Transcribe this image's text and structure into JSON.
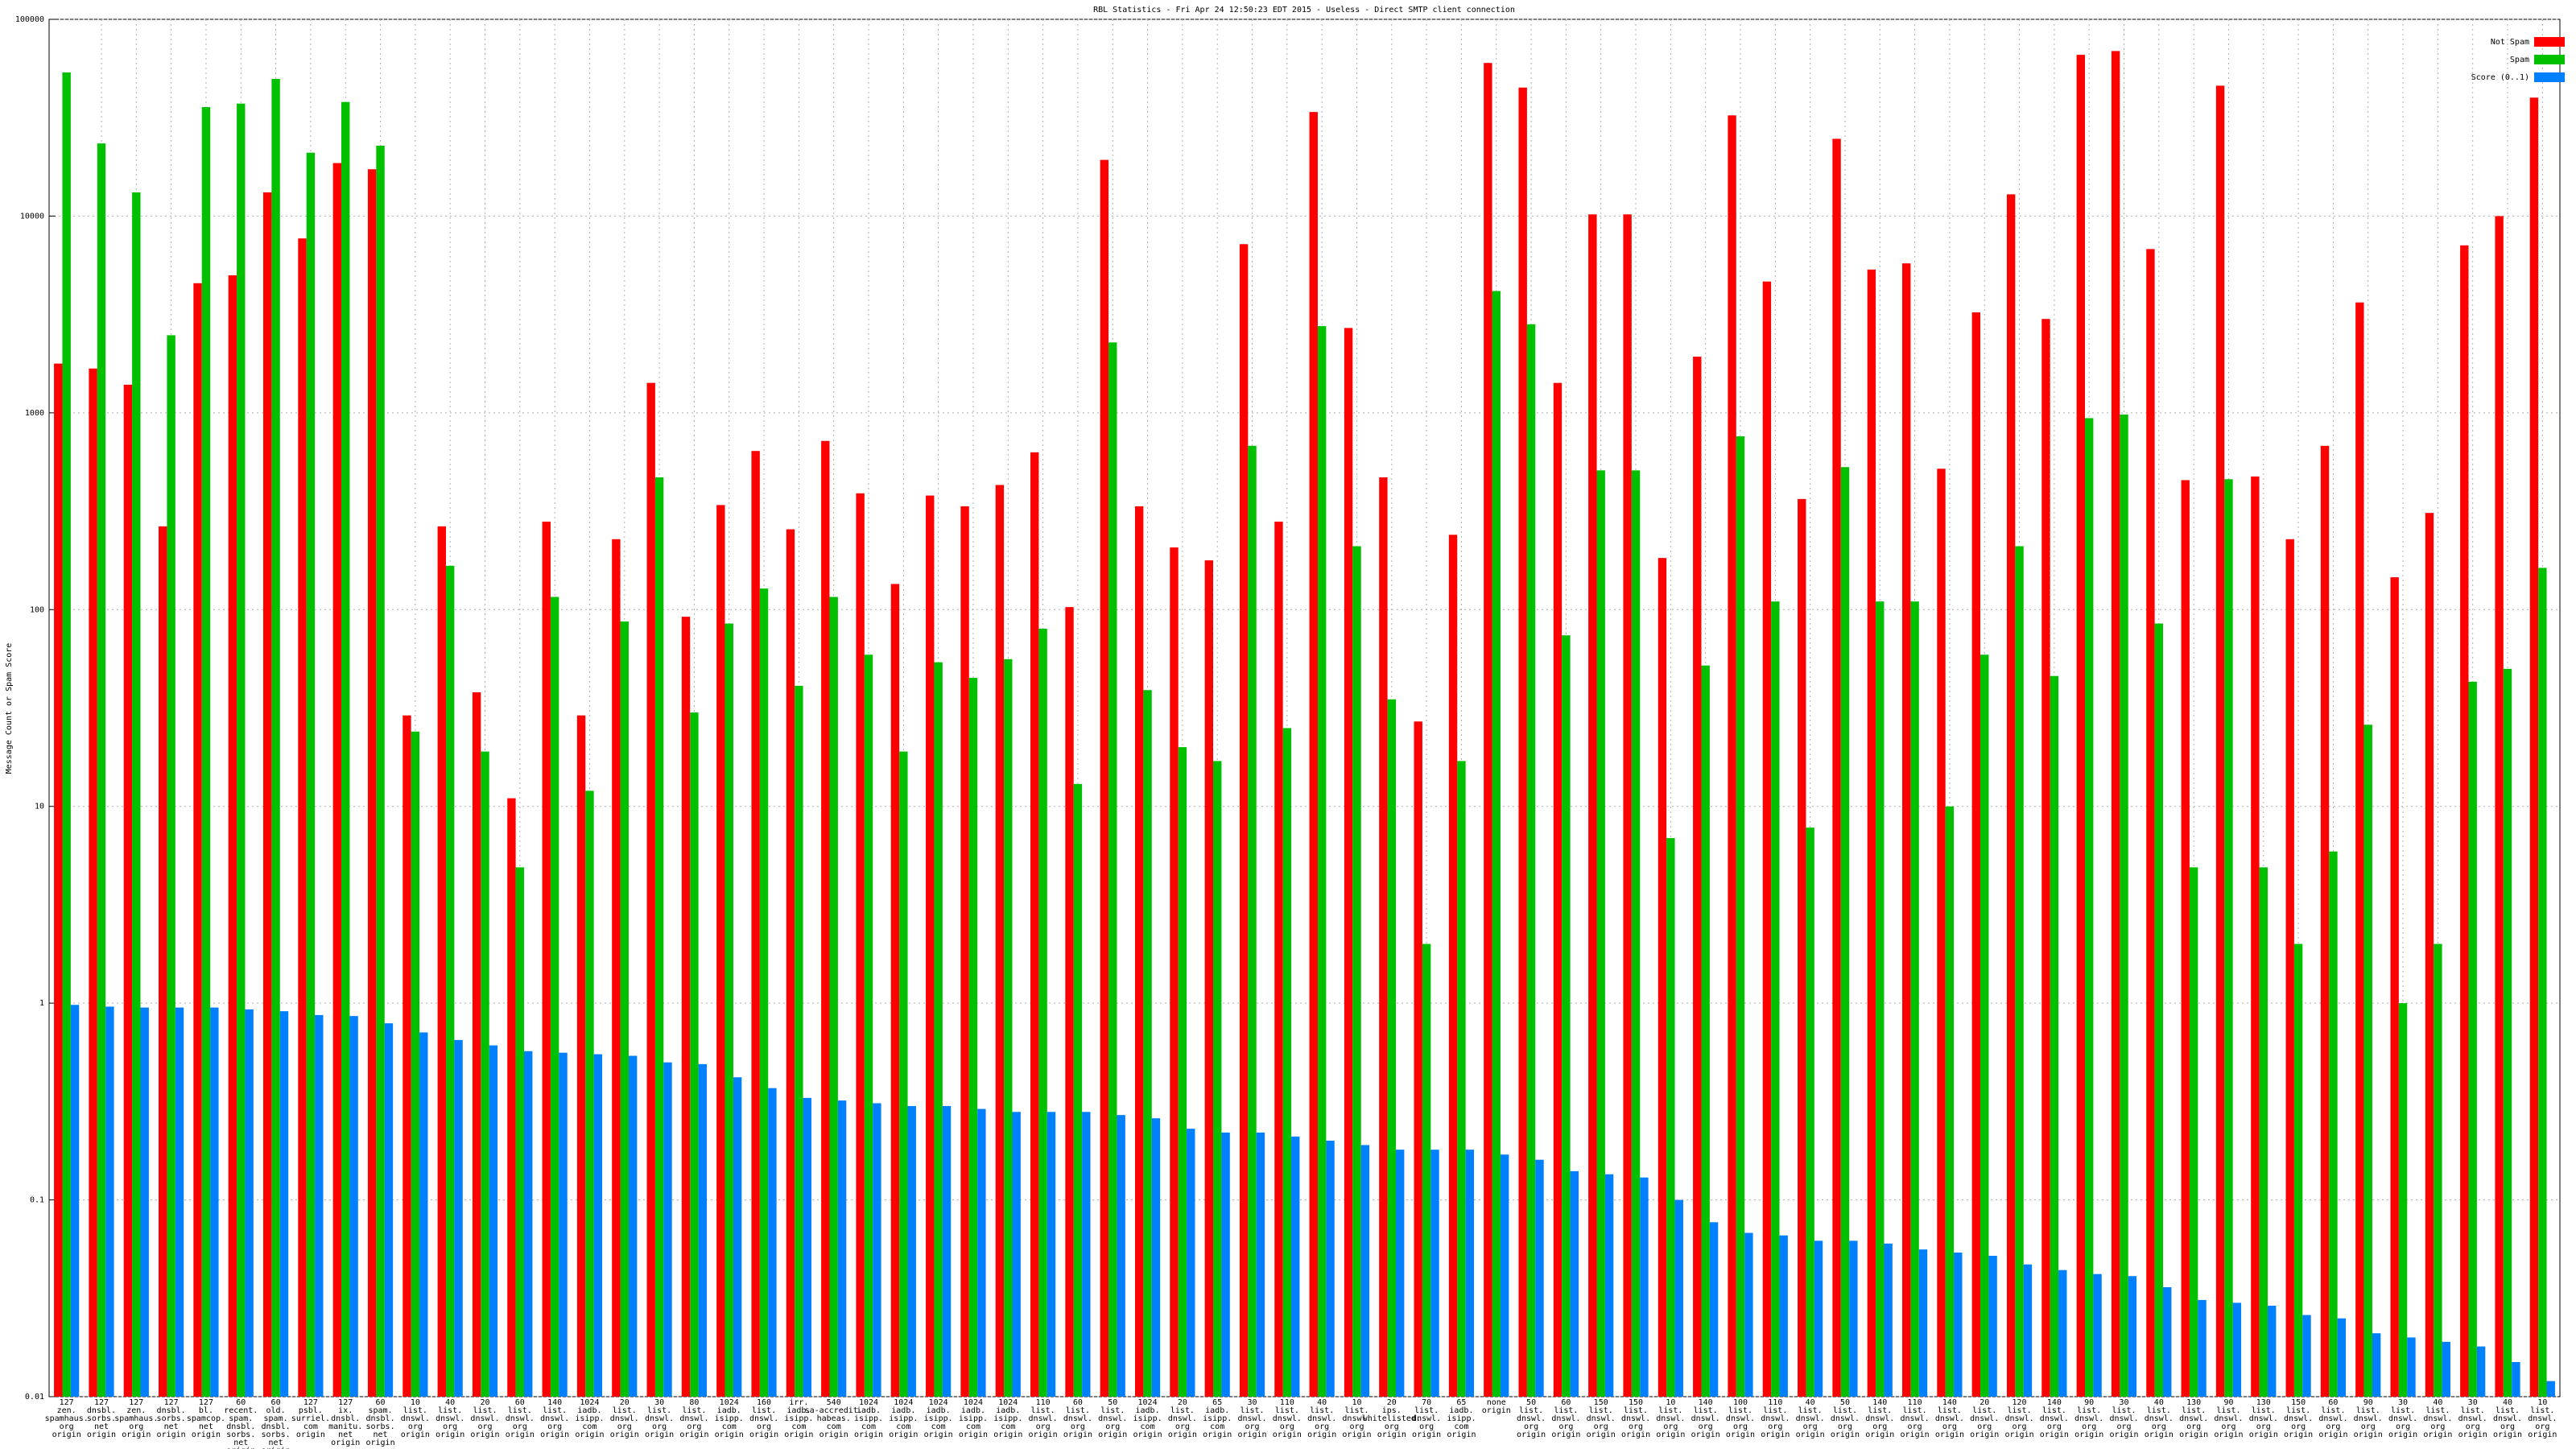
{
  "chart_data": {
    "type": "bar",
    "title": "RBL Statistics - Fri Apr 24 12:50:23 EDT 2015 - Useless - Direct SMTP client connection",
    "y_label": "Message Count or Spam Score",
    "log_y": true,
    "grid": true,
    "legend": "top-right",
    "ylim": [
      0.01,
      100000
    ],
    "yticks": [
      0.01,
      0.1,
      1,
      10,
      100,
      1000,
      10000,
      100000
    ],
    "categories": [
      "127\nzen.\nspamhaus.\norg\norigin",
      "127\ndnsbl.\nsorbs.\nnet\norigin",
      "127\nzen.\nspamhaus.\norg\norigin",
      "127\ndnsbl.\nsorbs.\nnet\norigin",
      "127\nbl.\nspamcop.\nnet\norigin",
      "60\nrecent.\nspam.\ndnsbl.\nsorbs.\nnet\norigin",
      "60\nold.\nspam.\ndnsbl.\nsorbs.\nnet\norigin",
      "127\npsbl.\nsurriel.\ncom\norigin",
      "127\nix.\ndnsbl.\nmanitu.\nnet\norigin",
      "60\nspam.\ndnsbl.\nsorbs.\nnet\norigin",
      "10\nlist.\ndnswl.\norg\norigin",
      "40\nlist.\ndnswl.\norg\norigin",
      "20\nlist.\ndnswl.\norg\norigin",
      "60\nlist.\ndnswl.\norg\norigin",
      "140\nlist.\ndnswl.\norg\norigin",
      "1024\niadb.\nisipp.\ncom\norigin",
      "20\nlist.\ndnswl.\norg\norigin",
      "30\nlist.\ndnswl.\norg\norigin",
      "80\nlist.\ndnswl.\norg\norigin",
      "1024\niadb.\nisipp.\ncom\norigin",
      "160\nlist.\ndnswl.\norg\norigin",
      "irr.\niadb.\nisipp.\ncom\norigin",
      "540\nsa-accredit.\nhabeas.\ncom\norigin",
      "1024\niadb.\nisipp.\ncom\norigin",
      "1024\niadb.\nisipp.\ncom\norigin",
      "1024\niadb.\nisipp.\ncom\norigin",
      "1024\niadb.\nisipp.\ncom\norigin",
      "1024\niadb.\nisipp.\ncom\norigin",
      "110\nlist.\ndnswl.\norg\norigin",
      "60\nlist.\ndnswl.\norg\norigin",
      "50\nlist.\ndnswl.\norg\norigin",
      "1024\niadb.\nisipp.\ncom\norigin",
      "20\nlist.\ndnswl.\norg\norigin",
      "65\niadb.\nisipp.\ncom\norigin",
      "30\nlist.\ndnswl.\norg\norigin",
      "110\nlist.\ndnswl.\norg\norigin",
      "40\nlist.\ndnswl.\norg\norigin",
      "10\nlist.\ndnswl.\norg\norigin",
      "20\nips.\nwhitelisted.\norg\norigin",
      "70\nlist.\ndnswl.\norg\norigin",
      "65\niadb.\nisipp.\ncom\norigin",
      "none\norigin",
      "50\nlist.\ndnswl.\norg\norigin",
      "60\nlist.\ndnswl.\norg\norigin",
      "150\nlist.\ndnswl.\norg\norigin",
      "150\nlist.\ndnswl.\norg\norigin",
      "10\nlist.\ndnswl.\norg\norigin",
      "140\nlist.\ndnswl.\norg\norigin",
      "100\nlist.\ndnswl.\norg\norigin",
      "110\nlist.\ndnswl.\norg\norigin",
      "40\nlist.\ndnswl.\norg\norigin",
      "50\nlist.\ndnswl.\norg\norigin",
      "140\nlist.\ndnswl.\norg\norigin",
      "110\nlist.\ndnswl.\norg\norigin",
      "140\nlist.\ndnswl.\norg\norigin",
      "20\nlist.\ndnswl.\norg\norigin",
      "120\nlist.\ndnswl.\norg\norigin",
      "140\nlist.\ndnswl.\norg\norigin",
      "90\nlist.\ndnswl.\norg\norigin",
      "30\nlist.\ndnswl.\norg\norigin",
      "40\nlist.\ndnswl.\norg\norigin",
      "130\nlist.\ndnswl.\norg\norigin",
      "90\nlist.\ndnswl.\norg\norigin",
      "130\nlist.\ndnswl.\norg\norigin",
      "150\nlist.\ndnswl.\norg\norigin",
      "60\nlist.\ndnswl.\norg\norigin",
      "90\nlist.\ndnswl.\norg\norigin",
      "30\nlist.\ndnswl.\norg\norigin",
      "40\nlist.\ndnswl.\norg\norigin",
      "30\nlist.\ndnswl.\norg\norigin",
      "40\nlist.\ndnswl.\norg\norigin",
      "10\nlist.\ndnswl.\norg\norigin"
    ],
    "series": [
      {
        "name": "Not Spam",
        "color": "#ff0000",
        "values": [
          1780,
          1680,
          1390,
          265,
          4560,
          5000,
          13200,
          7700,
          18600,
          17300,
          29,
          265,
          38,
          11,
          280,
          29,
          228,
          1420,
          92,
          340,
          640,
          256,
          720,
          390,
          135,
          380,
          335,
          430,
          630,
          103,
          19300,
          335,
          207,
          178,
          7200,
          280,
          33800,
          2700,
          470,
          27,
          240,
          60000,
          45000,
          1420,
          10200,
          10200,
          183,
          1930,
          32500,
          4650,
          365,
          24700,
          5350,
          5750,
          520,
          3240,
          12900,
          3000,
          66000,
          69000,
          6800,
          455,
          46000,
          475,
          228,
          680,
          3640,
          146,
          310,
          7100,
          10000,
          40000
        ]
      },
      {
        "name": "Spam",
        "color": "#00c000",
        "values": [
          53700,
          23400,
          13200,
          2480,
          35800,
          37300,
          49800,
          21000,
          38000,
          22800,
          24,
          167,
          19,
          4.9,
          116,
          12,
          87,
          470,
          30,
          85,
          128,
          41,
          116,
          59,
          19,
          54,
          45,
          56,
          80,
          13,
          2280,
          39,
          20,
          17,
          680,
          25,
          2760,
          210,
          35,
          2,
          17,
          4160,
          2820,
          74,
          510,
          510,
          6.9,
          52,
          760,
          110,
          7.8,
          530,
          110,
          110,
          10,
          59,
          210,
          46,
          940,
          980,
          85,
          4.9,
          460,
          4.9,
          2,
          5.9,
          26,
          1,
          2,
          43,
          50,
          163
        ]
      },
      {
        "name": "Score (0..1)",
        "color": "#0080ff",
        "values": [
          0.98,
          0.96,
          0.95,
          0.95,
          0.95,
          0.93,
          0.91,
          0.87,
          0.86,
          0.79,
          0.71,
          0.65,
          0.61,
          0.57,
          0.56,
          0.55,
          0.54,
          0.5,
          0.49,
          0.42,
          0.37,
          0.33,
          0.32,
          0.31,
          0.3,
          0.3,
          0.29,
          0.28,
          0.28,
          0.28,
          0.27,
          0.26,
          0.23,
          0.22,
          0.22,
          0.21,
          0.2,
          0.19,
          0.18,
          0.18,
          0.18,
          0.17,
          0.16,
          0.14,
          0.135,
          0.13,
          0.1,
          0.077,
          0.068,
          0.066,
          0.062,
          0.062,
          0.06,
          0.056,
          0.054,
          0.052,
          0.047,
          0.044,
          0.042,
          0.041,
          0.036,
          0.031,
          0.03,
          0.029,
          0.026,
          0.025,
          0.021,
          0.02,
          0.019,
          0.018,
          0.015,
          0.012
        ]
      }
    ]
  }
}
